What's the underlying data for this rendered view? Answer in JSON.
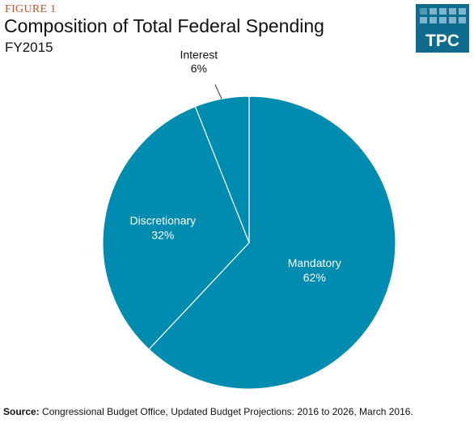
{
  "header": {
    "figure_label": "FIGURE 1",
    "title": "Composition of Total Federal Spending",
    "subtitle": "FY2015"
  },
  "logo": {
    "text": "TPC",
    "icon": "tpc-logo",
    "color": "#0e6c8f"
  },
  "chart_data": {
    "type": "pie",
    "title": "Composition of Total Federal Spending",
    "subtitle": "FY2015",
    "slices": [
      {
        "name": "Mandatory",
        "label": "62%",
        "value": 62,
        "color": "#008bb0"
      },
      {
        "name": "Discretionary",
        "label": "32%",
        "value": 32,
        "color": "#008bb0"
      },
      {
        "name": "Interest",
        "label": "6%",
        "value": 6,
        "color": "#008bb0"
      }
    ],
    "start": "12 o'clock",
    "direction": "clockwise",
    "legend": "none"
  },
  "footer": {
    "source_label": "Source:",
    "source_text": " Congressional Budget Office, Updated Budget Projections: 2016 to 2026, March 2016."
  }
}
